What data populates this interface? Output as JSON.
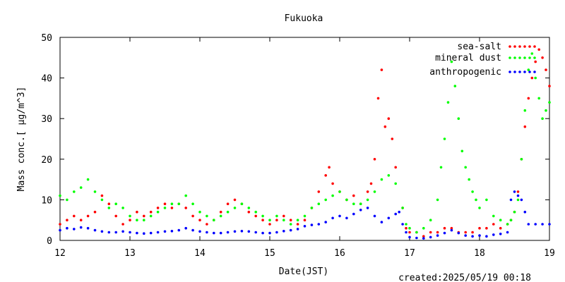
{
  "chart_data": {
    "type": "scatter",
    "title": "Fukuoka",
    "xlabel": "Date(JST)",
    "ylabel": "Mass conc.[ μg/m^3]",
    "footer": "created:2025/05/19 00:18",
    "xlim": [
      12,
      19
    ],
    "ylim": [
      0,
      50
    ],
    "x_ticks": [
      12,
      13,
      14,
      15,
      16,
      17,
      18,
      19
    ],
    "y_ticks": [
      0,
      10,
      20,
      30,
      40,
      50
    ],
    "x_tick_labels": [
      "12",
      "13",
      "14",
      "15",
      "16",
      "17",
      "18",
      "19"
    ],
    "y_tick_labels": [
      "0",
      "10",
      "20",
      "30",
      "40",
      "50"
    ],
    "legend_position": "top-right",
    "grid": false,
    "series": [
      {
        "name": "sea-salt",
        "color": "#ff0000",
        "x": [
          12.0,
          12.1,
          12.2,
          12.3,
          12.4,
          12.5,
          12.6,
          12.7,
          12.8,
          12.9,
          13.0,
          13.1,
          13.2,
          13.3,
          13.4,
          13.5,
          13.6,
          13.7,
          13.8,
          13.9,
          14.0,
          14.1,
          14.2,
          14.3,
          14.4,
          14.5,
          14.6,
          14.7,
          14.8,
          14.9,
          15.0,
          15.1,
          15.2,
          15.3,
          15.4,
          15.5,
          15.6,
          15.7,
          15.8,
          15.85,
          15.9,
          16.0,
          16.1,
          16.2,
          16.3,
          16.4,
          16.45,
          16.5,
          16.55,
          16.6,
          16.65,
          16.7,
          16.75,
          16.8,
          16.9,
          16.95,
          17.0,
          17.1,
          17.2,
          17.3,
          17.4,
          17.5,
          17.6,
          17.7,
          17.8,
          17.9,
          18.0,
          18.1,
          18.2,
          18.3,
          18.4,
          18.45,
          18.5,
          18.55,
          18.6,
          18.65,
          18.7,
          18.75,
          18.8,
          18.85,
          18.9,
          18.95,
          19.0
        ],
        "y": [
          4,
          5,
          6,
          5,
          6,
          7,
          11,
          9,
          6,
          4,
          5,
          7,
          6,
          7,
          8,
          9,
          8,
          9,
          8,
          6,
          5,
          4,
          5,
          7,
          9,
          10,
          9,
          7,
          6,
          5,
          4,
          5,
          6,
          5,
          4,
          5,
          8,
          12,
          16,
          18,
          14,
          12,
          10,
          11,
          9,
          12,
          14,
          20,
          35,
          42,
          28,
          30,
          25,
          18,
          8,
          3,
          2,
          2,
          1,
          2,
          2,
          3,
          3,
          2,
          2,
          2,
          3,
          3,
          4,
          3,
          4,
          5,
          7,
          12,
          20,
          28,
          35,
          40,
          44,
          47,
          45,
          42,
          38
        ]
      },
      {
        "name": "mineral dust",
        "color": "#00ff00",
        "x": [
          12.0,
          12.1,
          12.2,
          12.3,
          12.4,
          12.5,
          12.6,
          12.7,
          12.8,
          12.9,
          13.0,
          13.1,
          13.2,
          13.3,
          13.4,
          13.5,
          13.6,
          13.7,
          13.8,
          13.9,
          14.0,
          14.1,
          14.2,
          14.3,
          14.4,
          14.5,
          14.6,
          14.7,
          14.8,
          14.9,
          15.0,
          15.1,
          15.2,
          15.3,
          15.4,
          15.5,
          15.6,
          15.7,
          15.8,
          15.9,
          16.0,
          16.1,
          16.2,
          16.3,
          16.4,
          16.5,
          16.6,
          16.7,
          16.8,
          16.9,
          16.95,
          17.0,
          17.1,
          17.2,
          17.3,
          17.4,
          17.45,
          17.5,
          17.55,
          17.6,
          17.65,
          17.7,
          17.75,
          17.8,
          17.85,
          17.9,
          17.95,
          18.0,
          18.1,
          18.2,
          18.3,
          18.4,
          18.45,
          18.5,
          18.55,
          18.6,
          18.65,
          18.7,
          18.75,
          18.8,
          18.85,
          18.9,
          18.95,
          19.0
        ],
        "y": [
          11,
          10,
          12,
          13,
          15,
          12,
          10,
          8,
          9,
          8,
          6,
          5,
          5,
          6,
          7,
          8,
          9,
          9,
          11,
          9,
          7,
          6,
          5,
          6,
          7,
          8,
          9,
          8,
          7,
          6,
          5,
          6,
          5,
          4,
          5,
          6,
          8,
          9,
          10,
          11,
          12,
          10,
          9,
          9,
          10,
          12,
          15,
          16,
          14,
          8,
          4,
          3,
          2,
          3,
          5,
          10,
          18,
          25,
          34,
          44,
          38,
          30,
          22,
          18,
          15,
          12,
          10,
          8,
          10,
          6,
          5,
          4,
          5,
          7,
          10,
          20,
          32,
          42,
          46,
          40,
          35,
          30,
          32,
          34
        ]
      },
      {
        "name": "anthropogenic",
        "color": "#0000ff",
        "x": [
          12.0,
          12.1,
          12.2,
          12.3,
          12.4,
          12.5,
          12.6,
          12.7,
          12.8,
          12.9,
          13.0,
          13.1,
          13.2,
          13.3,
          13.4,
          13.5,
          13.6,
          13.7,
          13.8,
          13.9,
          14.0,
          14.1,
          14.2,
          14.3,
          14.4,
          14.5,
          14.6,
          14.7,
          14.8,
          14.9,
          15.0,
          15.1,
          15.2,
          15.3,
          15.4,
          15.5,
          15.6,
          15.7,
          15.8,
          15.9,
          16.0,
          16.1,
          16.2,
          16.3,
          16.4,
          16.5,
          16.6,
          16.7,
          16.8,
          16.85,
          16.9,
          16.95,
          17.0,
          17.1,
          17.2,
          17.3,
          17.4,
          17.5,
          17.6,
          17.7,
          17.8,
          17.9,
          18.0,
          18.1,
          18.2,
          18.3,
          18.4,
          18.45,
          18.5,
          18.55,
          18.6,
          18.65,
          18.7,
          18.8,
          18.9,
          19.0
        ],
        "y": [
          2.5,
          3,
          2.8,
          3.2,
          3,
          2.5,
          2.2,
          2,
          2,
          2.2,
          2,
          1.8,
          1.7,
          1.8,
          2,
          2.2,
          2.3,
          2.5,
          3,
          2.5,
          2.2,
          2,
          1.8,
          1.8,
          2,
          2.2,
          2.3,
          2.2,
          2,
          1.8,
          1.8,
          2,
          2.3,
          2.5,
          2.8,
          3.5,
          3.8,
          4,
          4.5,
          5.5,
          6,
          5.5,
          6.5,
          7.5,
          8,
          6,
          4.5,
          5.5,
          6.5,
          7,
          4,
          2,
          0.8,
          0.6,
          0.5,
          0.8,
          1.2,
          1.8,
          2.5,
          1.8,
          1.2,
          1,
          1.2,
          1,
          1.4,
          1.6,
          2,
          10,
          12,
          11,
          10,
          7,
          4,
          4,
          4,
          4
        ]
      }
    ]
  }
}
